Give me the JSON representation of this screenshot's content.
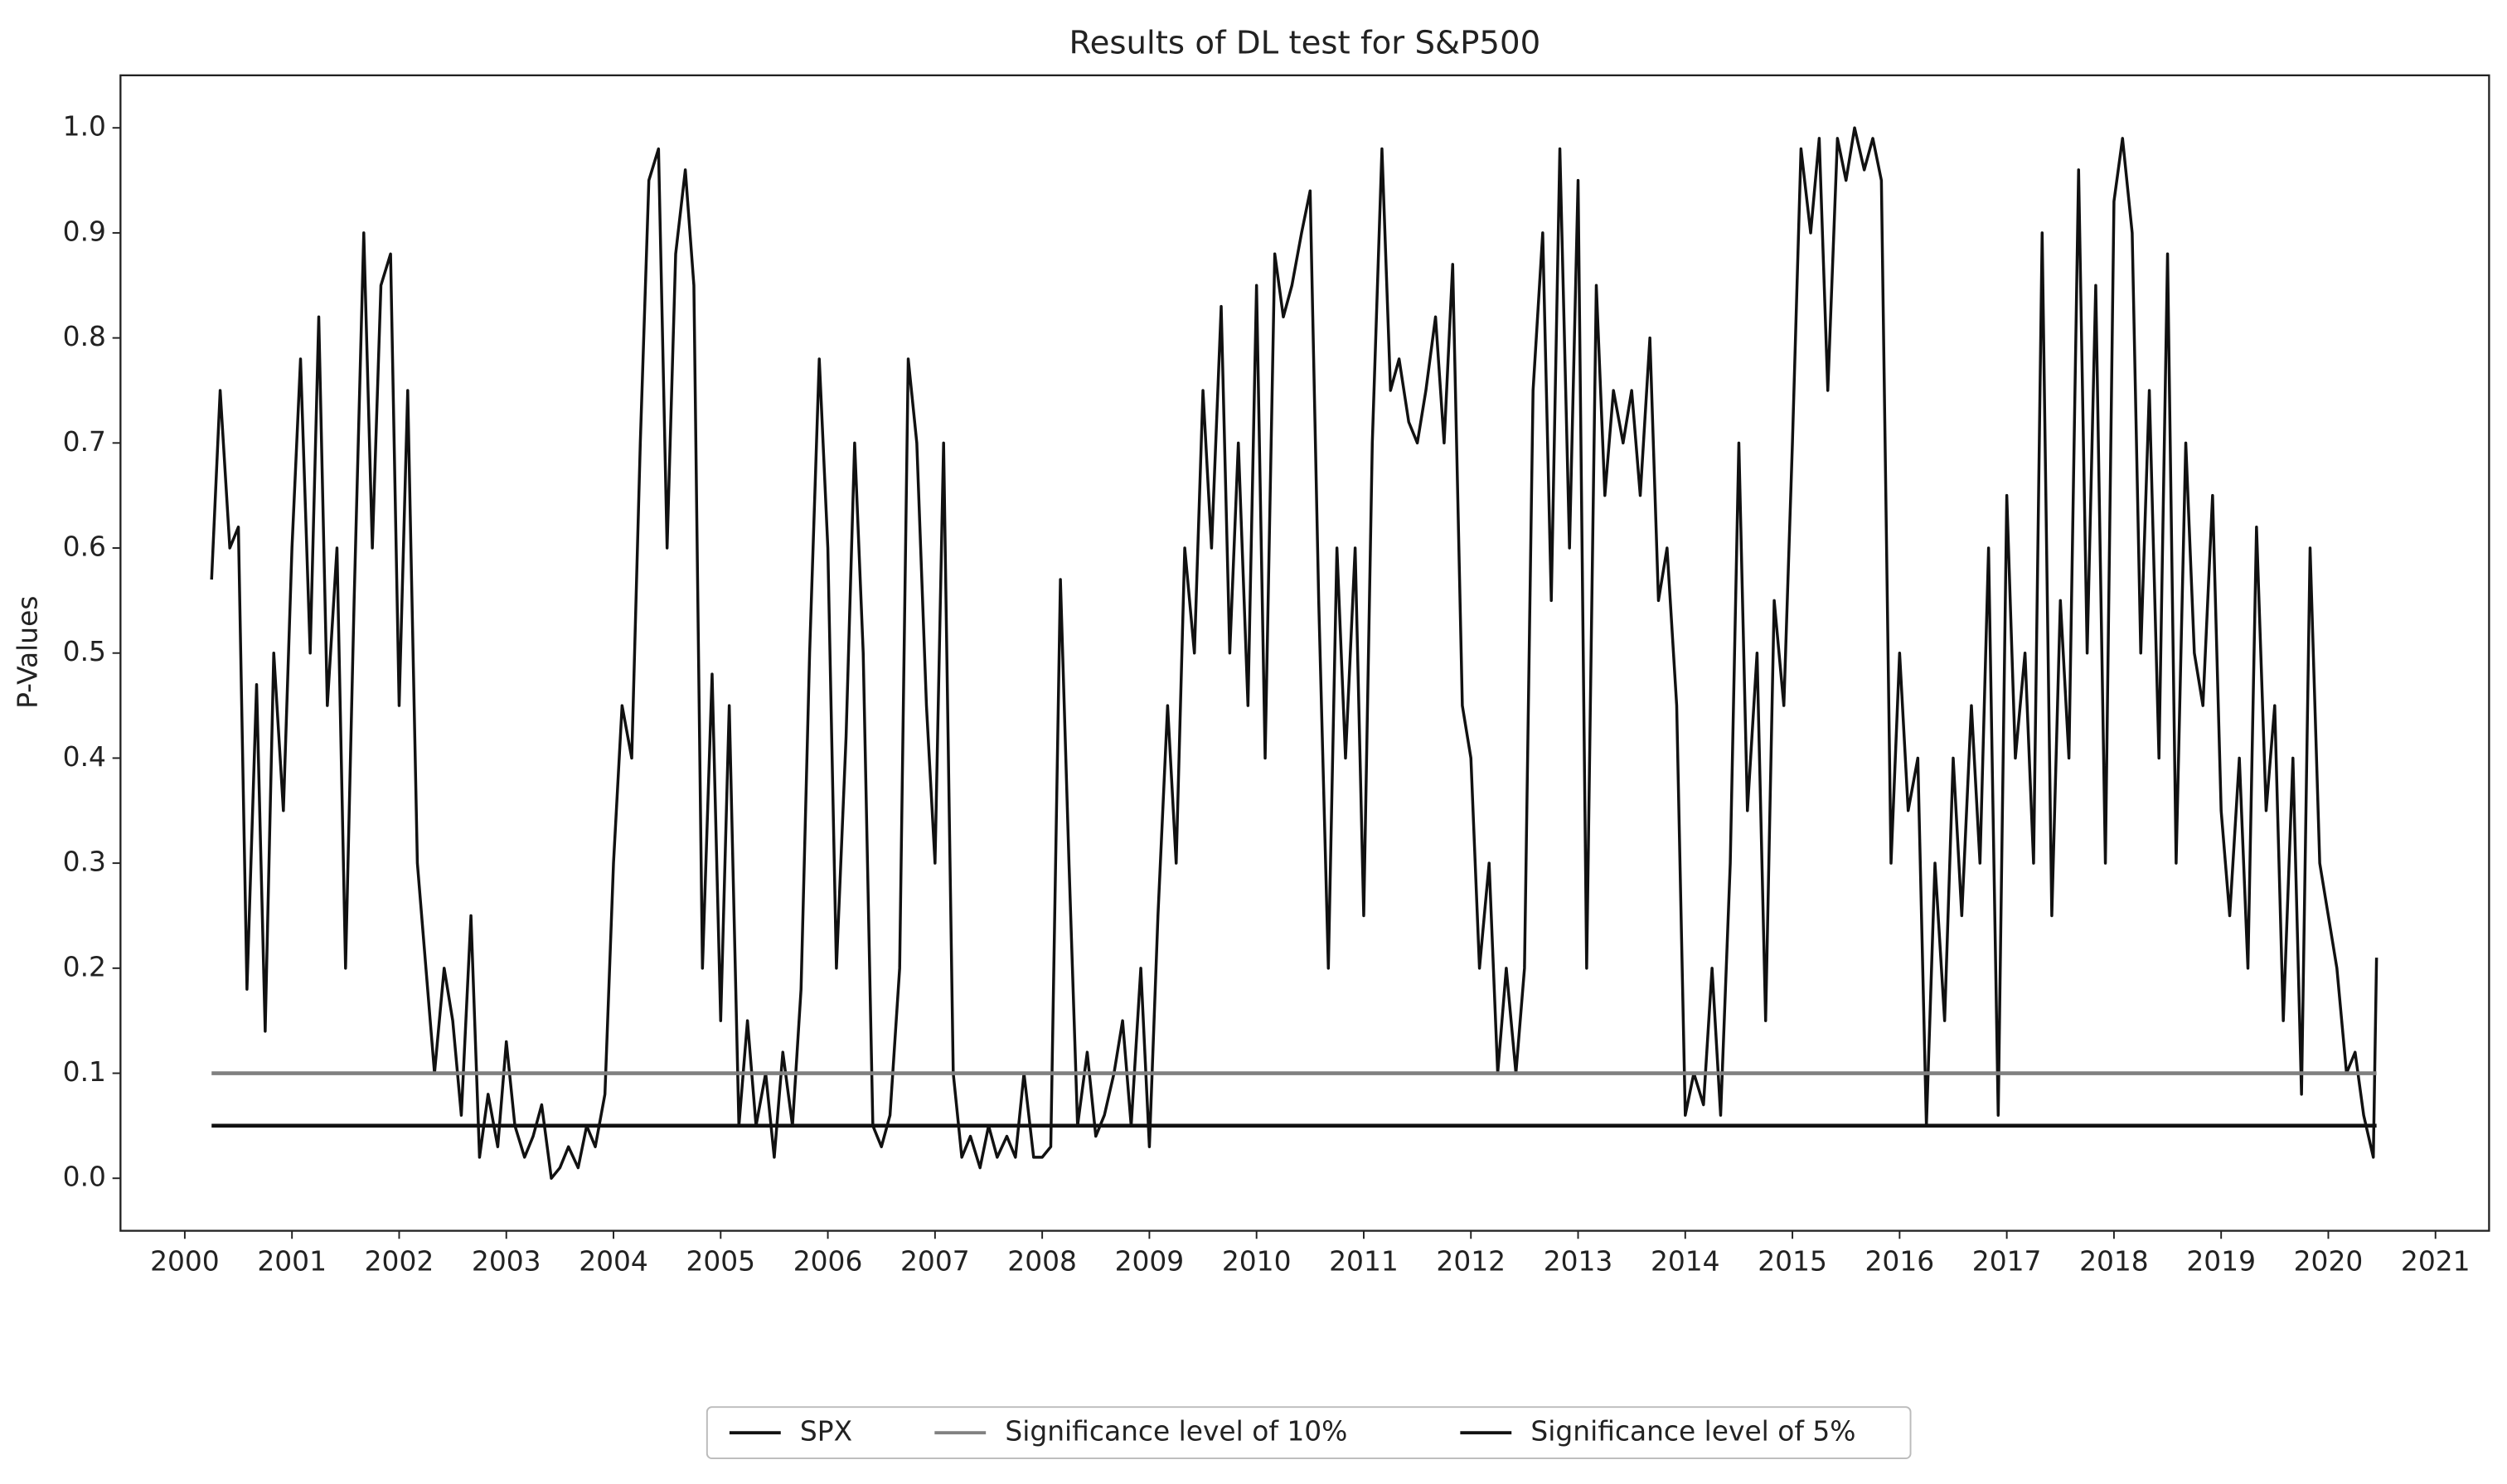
{
  "chart_data": {
    "type": "line",
    "title": "Results of DL test for S&P500",
    "ylabel": "P-Values",
    "xlim": [
      1999.4,
      2021.5
    ],
    "ylim": [
      -0.05,
      1.05
    ],
    "xticks": [
      2000,
      2001,
      2002,
      2003,
      2004,
      2005,
      2006,
      2007,
      2008,
      2009,
      2010,
      2011,
      2012,
      2013,
      2014,
      2015,
      2016,
      2017,
      2018,
      2019,
      2020,
      2021
    ],
    "yticks": [
      {
        "value": 0,
        "label": "0.0"
      },
      0.1,
      0.2,
      0.3,
      0.4,
      0.5,
      0.6,
      0.7,
      0.8,
      0.9,
      {
        "value": 1,
        "label": "1.0"
      }
    ],
    "legend": "lower center",
    "series": [
      {
        "name": "SPX",
        "color": "#111111",
        "x": [
          2000.25,
          2000.33,
          2000.42,
          2000.5,
          2000.58,
          2000.67,
          2000.75,
          2000.83,
          2000.92,
          2001.0,
          2001.08,
          2001.17,
          2001.25,
          2001.33,
          2001.42,
          2001.5,
          2001.58,
          2001.67,
          2001.75,
          2001.83,
          2001.92,
          2002.0,
          2002.08,
          2002.17,
          2002.25,
          2002.33,
          2002.42,
          2002.5,
          2002.58,
          2002.67,
          2002.75,
          2002.83,
          2002.92,
          2003.0,
          2003.08,
          2003.17,
          2003.25,
          2003.33,
          2003.42,
          2003.5,
          2003.58,
          2003.67,
          2003.75,
          2003.83,
          2003.92,
          2004.0,
          2004.08,
          2004.17,
          2004.25,
          2004.33,
          2004.42,
          2004.5,
          2004.58,
          2004.67,
          2004.75,
          2004.83,
          2004.92,
          2005.0,
          2005.08,
          2005.17,
          2005.25,
          2005.33,
          2005.42,
          2005.5,
          2005.58,
          2005.67,
          2005.75,
          2005.83,
          2005.92,
          2006.0,
          2006.08,
          2006.17,
          2006.25,
          2006.33,
          2006.42,
          2006.5,
          2006.58,
          2006.67,
          2006.75,
          2006.83,
          2006.92,
          2007.0,
          2007.08,
          2007.17,
          2007.25,
          2007.33,
          2007.42,
          2007.5,
          2007.58,
          2007.67,
          2007.75,
          2007.83,
          2007.92,
          2008.0,
          2008.08,
          2008.17,
          2008.25,
          2008.33,
          2008.42,
          2008.5,
          2008.58,
          2008.67,
          2008.75,
          2008.83,
          2008.92,
          2009.0,
          2009.08,
          2009.17,
          2009.25,
          2009.33,
          2009.42,
          2009.5,
          2009.58,
          2009.67,
          2009.75,
          2009.83,
          2009.92,
          2010.0,
          2010.08,
          2010.17,
          2010.25,
          2010.33,
          2010.42,
          2010.5,
          2010.58,
          2010.67,
          2010.75,
          2010.83,
          2010.92,
          2011.0,
          2011.08,
          2011.17,
          2011.25,
          2011.33,
          2011.42,
          2011.5,
          2011.58,
          2011.67,
          2011.75,
          2011.83,
          2011.92,
          2012.0,
          2012.08,
          2012.17,
          2012.25,
          2012.33,
          2012.42,
          2012.5,
          2012.58,
          2012.67,
          2012.75,
          2012.83,
          2012.92,
          2013.0,
          2013.08,
          2013.17,
          2013.25,
          2013.33,
          2013.42,
          2013.5,
          2013.58,
          2013.67,
          2013.75,
          2013.83,
          2013.92,
          2014.0,
          2014.08,
          2014.17,
          2014.25,
          2014.33,
          2014.42,
          2014.5,
          2014.58,
          2014.67,
          2014.75,
          2014.83,
          2014.92,
          2015.0,
          2015.08,
          2015.17,
          2015.25,
          2015.33,
          2015.42,
          2015.5,
          2015.58,
          2015.67,
          2015.75,
          2015.83,
          2015.92,
          2016.0,
          2016.08,
          2016.17,
          2016.25,
          2016.33,
          2016.42,
          2016.5,
          2016.58,
          2016.67,
          2016.75,
          2016.83,
          2016.92,
          2017.0,
          2017.08,
          2017.17,
          2017.25,
          2017.33,
          2017.42,
          2017.5,
          2017.58,
          2017.67,
          2017.75,
          2017.83,
          2017.92,
          2018.0,
          2018.08,
          2018.17,
          2018.25,
          2018.33,
          2018.42,
          2018.5,
          2018.58,
          2018.67,
          2018.75,
          2018.83,
          2018.92,
          2019.0,
          2019.08,
          2019.17,
          2019.25,
          2019.33,
          2019.42,
          2019.5,
          2019.58,
          2019.67,
          2019.75,
          2019.83,
          2019.92,
          2020.0,
          2020.08,
          2020.17,
          2020.25,
          2020.33,
          2020.42,
          2020.45
        ],
        "values": [
          0.57,
          0.75,
          0.6,
          0.62,
          0.18,
          0.47,
          0.14,
          0.5,
          0.35,
          0.6,
          0.78,
          0.5,
          0.82,
          0.45,
          0.6,
          0.2,
          0.55,
          0.9,
          0.6,
          0.85,
          0.88,
          0.45,
          0.75,
          0.3,
          0.2,
          0.1,
          0.2,
          0.15,
          0.06,
          0.25,
          0.02,
          0.08,
          0.03,
          0.13,
          0.05,
          0.02,
          0.04,
          0.07,
          0.0,
          0.01,
          0.03,
          0.01,
          0.05,
          0.03,
          0.08,
          0.3,
          0.45,
          0.4,
          0.7,
          0.95,
          0.98,
          0.6,
          0.88,
          0.96,
          0.85,
          0.2,
          0.48,
          0.15,
          0.45,
          0.05,
          0.15,
          0.05,
          0.1,
          0.02,
          0.12,
          0.05,
          0.18,
          0.5,
          0.78,
          0.6,
          0.2,
          0.42,
          0.7,
          0.5,
          0.05,
          0.03,
          0.06,
          0.2,
          0.78,
          0.7,
          0.45,
          0.3,
          0.7,
          0.1,
          0.02,
          0.04,
          0.01,
          0.05,
          0.02,
          0.04,
          0.02,
          0.1,
          0.02,
          0.02,
          0.03,
          0.57,
          0.3,
          0.05,
          0.12,
          0.04,
          0.06,
          0.1,
          0.15,
          0.05,
          0.2,
          0.03,
          0.25,
          0.45,
          0.3,
          0.6,
          0.5,
          0.75,
          0.6,
          0.83,
          0.5,
          0.7,
          0.45,
          0.85,
          0.4,
          0.88,
          0.82,
          0.85,
          0.9,
          0.94,
          0.55,
          0.2,
          0.6,
          0.4,
          0.6,
          0.25,
          0.7,
          0.98,
          0.75,
          0.78,
          0.72,
          0.7,
          0.75,
          0.82,
          0.7,
          0.87,
          0.45,
          0.4,
          0.2,
          0.3,
          0.1,
          0.2,
          0.1,
          0.2,
          0.75,
          0.9,
          0.55,
          0.98,
          0.6,
          0.95,
          0.2,
          0.85,
          0.65,
          0.75,
          0.7,
          0.75,
          0.65,
          0.8,
          0.55,
          0.6,
          0.45,
          0.06,
          0.1,
          0.07,
          0.2,
          0.06,
          0.3,
          0.7,
          0.35,
          0.5,
          0.15,
          0.55,
          0.45,
          0.7,
          0.98,
          0.9,
          0.99,
          0.75,
          0.99,
          0.95,
          1.0,
          0.96,
          0.99,
          0.95,
          0.3,
          0.5,
          0.35,
          0.4,
          0.05,
          0.3,
          0.15,
          0.4,
          0.25,
          0.45,
          0.3,
          0.6,
          0.06,
          0.65,
          0.4,
          0.5,
          0.3,
          0.9,
          0.25,
          0.55,
          0.4,
          0.96,
          0.5,
          0.85,
          0.3,
          0.93,
          0.99,
          0.9,
          0.5,
          0.75,
          0.4,
          0.88,
          0.3,
          0.7,
          0.5,
          0.45,
          0.65,
          0.35,
          0.25,
          0.4,
          0.2,
          0.62,
          0.35,
          0.45,
          0.15,
          0.4,
          0.08,
          0.6,
          0.3,
          0.25,
          0.2,
          0.1,
          0.12,
          0.06,
          0.02,
          0.21
        ]
      },
      {
        "name": "Significance level of 10%",
        "color": "#808080",
        "x": [
          2000.25,
          2020.45
        ],
        "values": [
          0.1,
          0.1
        ]
      },
      {
        "name": "Significance level of 5%",
        "color": "#111111",
        "x": [
          2000.25,
          2020.45
        ],
        "values": [
          0.05,
          0.05
        ]
      }
    ]
  }
}
